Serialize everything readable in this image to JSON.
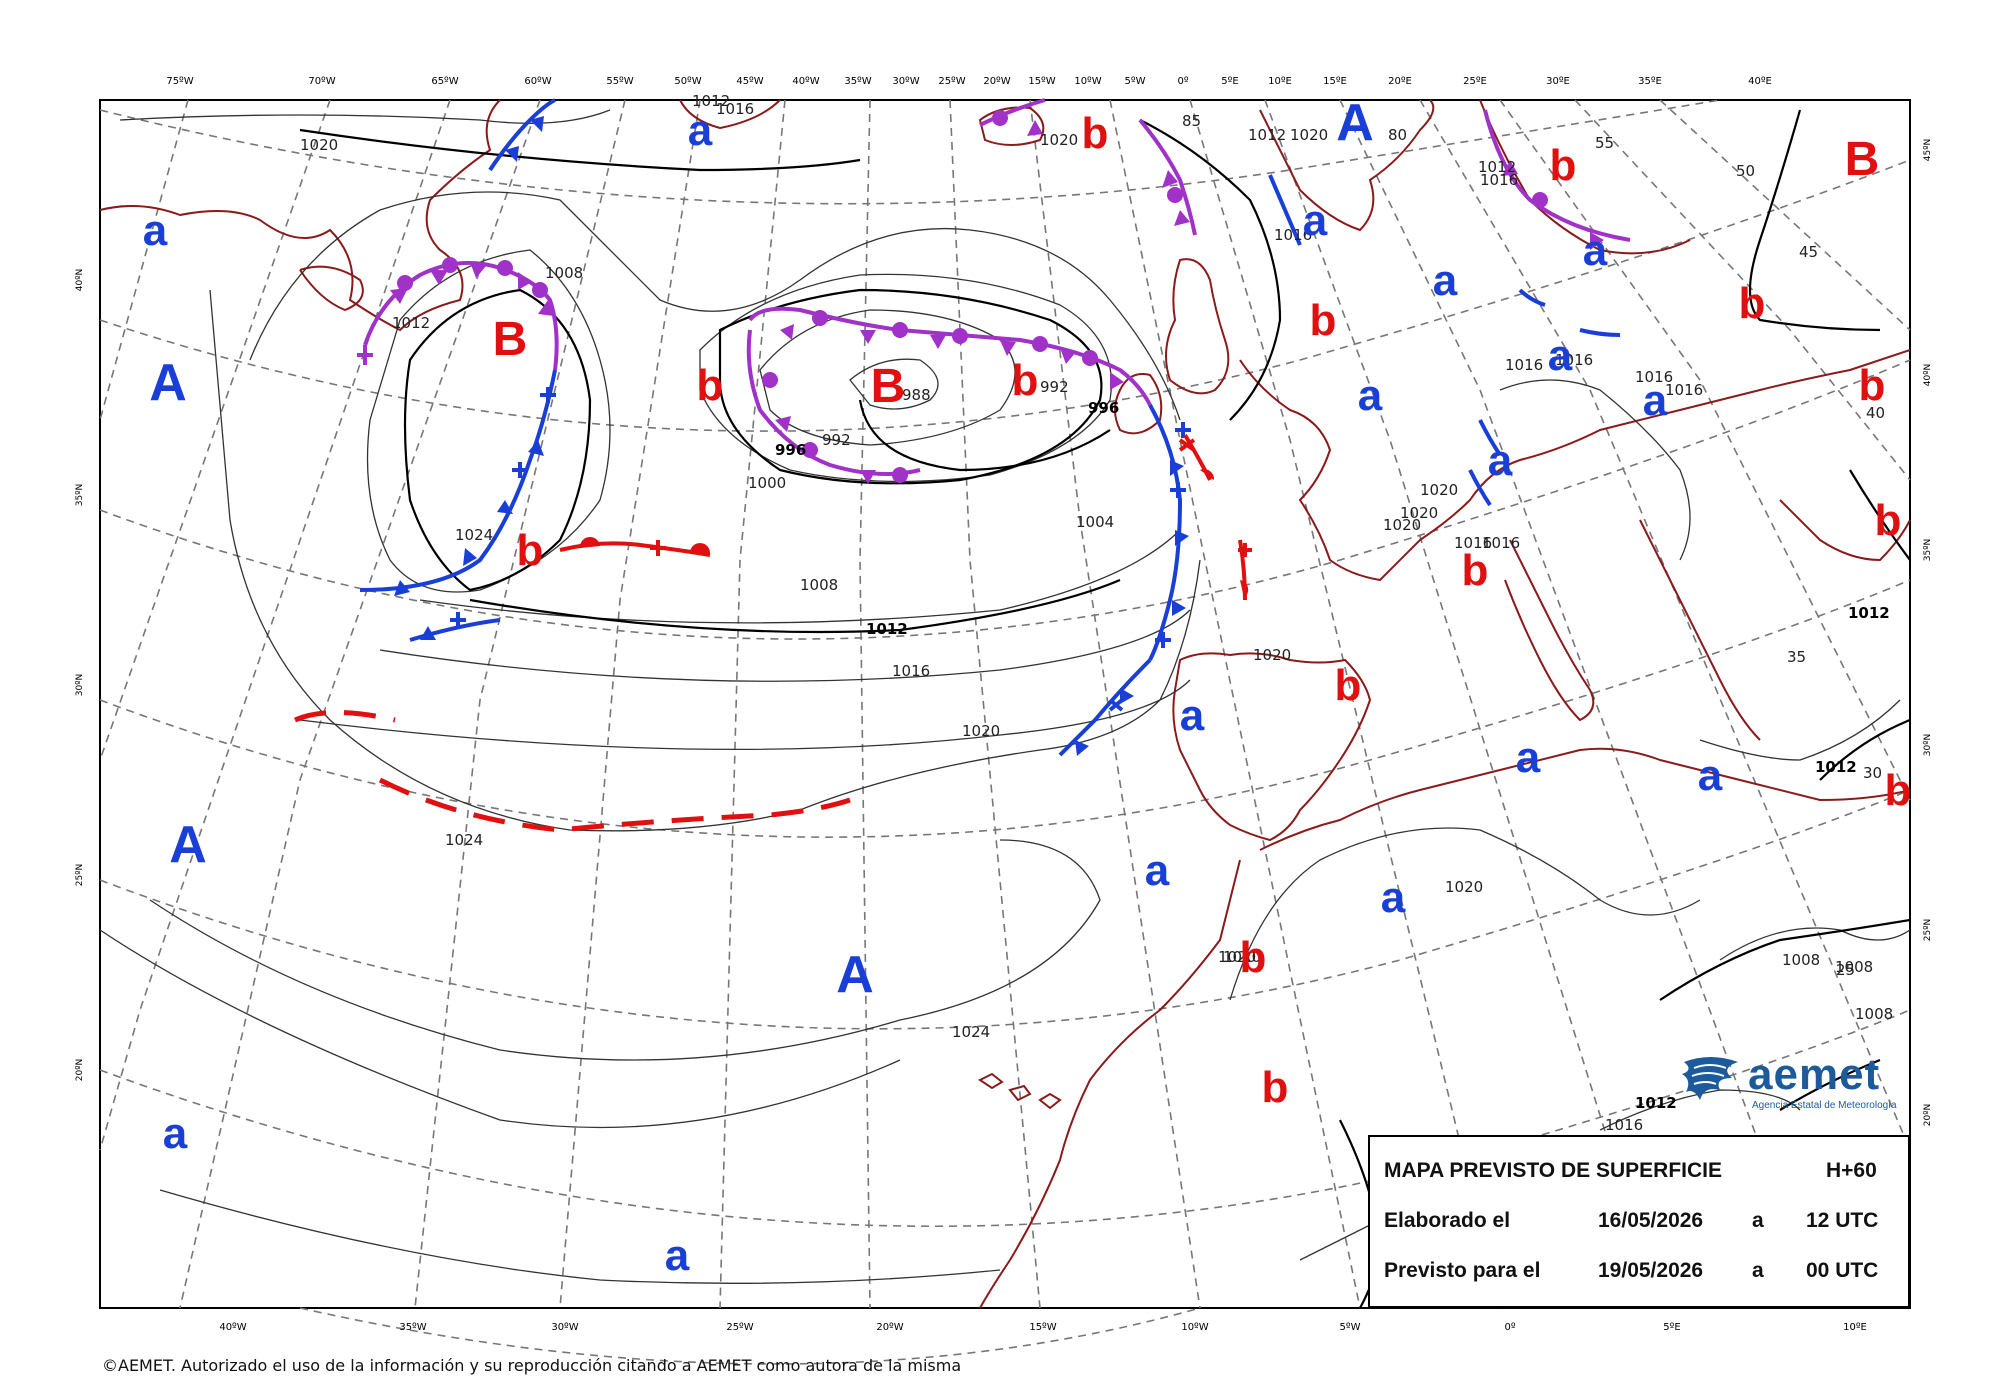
{
  "colors": {
    "high": "#1a3fd6",
    "low": "#e01010",
    "occluded": "#a032c8",
    "cold": "#1a3fd6",
    "warm": "#e01010",
    "coast": "#8b1a1a",
    "grid": "#777777",
    "isobar": "#333333"
  },
  "top_lon_labels": [
    "75ºW",
    "70ºW",
    "65ºW",
    "60ºW",
    "55ºW",
    "50ºW",
    "45ºW",
    "40ºW",
    "35ºW",
    "30ºW",
    "25ºW",
    "20ºW",
    "15ºW",
    "10ºW",
    "5ºW",
    "0º",
    "5ºE",
    "10ºE",
    "15ºE",
    "20ºE",
    "25ºE",
    "30ºE",
    "35ºE",
    "40ºE"
  ],
  "bottom_lon_labels": [
    "40ºW",
    "35ºW",
    "30ºW",
    "25ºW",
    "20ºW",
    "15ºW",
    "10ºW",
    "5ºW",
    "0º",
    "5ºE",
    "10ºE"
  ],
  "left_lat_labels": [
    "40ºN",
    "35ºN",
    "30ºN",
    "25ºN",
    "20ºN"
  ],
  "right_lat_labels": [
    "45ºN",
    "40ºN",
    "35ºN",
    "30ºN",
    "25ºN",
    "20ºN"
  ],
  "isobar_labels": [
    {
      "text": "1020",
      "bold": false
    },
    {
      "text": "1016",
      "bold": false
    },
    {
      "text": "1012",
      "bold": false
    },
    {
      "text": "1008",
      "bold": false
    },
    {
      "text": "1012",
      "bold": false
    },
    {
      "text": "1008",
      "bold": false
    },
    {
      "text": "1004",
      "bold": false
    },
    {
      "text": "1000",
      "bold": false
    },
    {
      "text": "996",
      "bold": true
    },
    {
      "text": "992",
      "bold": false
    },
    {
      "text": "988",
      "bold": false
    },
    {
      "text": "992",
      "bold": false
    },
    {
      "text": "996",
      "bold": true
    },
    {
      "text": "1024",
      "bold": false
    },
    {
      "text": "1012",
      "bold": true
    },
    {
      "text": "1016",
      "bold": false
    },
    {
      "text": "1020",
      "bold": false
    },
    {
      "text": "1024",
      "bold": false
    },
    {
      "text": "1024",
      "bold": false
    },
    {
      "text": "1020",
      "bold": false
    },
    {
      "text": "1020",
      "bold": false
    },
    {
      "text": "1016",
      "bold": false
    },
    {
      "text": "1012",
      "bold": false
    },
    {
      "text": "1020",
      "bold": false
    },
    {
      "text": "1016",
      "bold": false
    },
    {
      "text": "1016",
      "bold": false
    },
    {
      "text": "1016",
      "bold": false
    },
    {
      "text": "1020",
      "bold": false
    },
    {
      "text": "1020",
      "bold": false
    },
    {
      "text": "1020",
      "bold": false
    },
    {
      "text": "1016",
      "bold": false
    },
    {
      "text": "1016",
      "bold": false
    },
    {
      "text": "1016",
      "bold": false
    },
    {
      "text": "1016",
      "bold": false
    },
    {
      "text": "1020",
      "bold": false
    },
    {
      "text": "1020",
      "bold": false
    },
    {
      "text": "1012",
      "bold": true
    },
    {
      "text": "1012",
      "bold": true
    },
    {
      "text": "1008",
      "bold": false
    },
    {
      "text": "1008",
      "bold": false
    },
    {
      "text": "1008",
      "bold": false
    },
    {
      "text": "1012",
      "bold": true
    },
    {
      "text": "1016",
      "bold": false
    },
    {
      "text": "85",
      "bold": false
    },
    {
      "text": "80",
      "bold": false
    },
    {
      "text": "55",
      "bold": false
    },
    {
      "text": "50",
      "bold": false
    },
    {
      "text": "45",
      "bold": false
    },
    {
      "text": "40",
      "bold": false
    },
    {
      "text": "35",
      "bold": false
    },
    {
      "text": "30",
      "bold": false
    },
    {
      "text": "25",
      "bold": false
    },
    {
      "text": "1012",
      "bold": false
    },
    {
      "text": "1020",
      "bold": false
    }
  ],
  "pressure_systems": [
    {
      "label": "A",
      "kind": "high"
    },
    {
      "label": "A",
      "kind": "high"
    },
    {
      "label": "A",
      "kind": "high"
    },
    {
      "label": "A",
      "kind": "high"
    },
    {
      "label": "a",
      "kind": "high"
    },
    {
      "label": "a",
      "kind": "high"
    },
    {
      "label": "a",
      "kind": "high"
    },
    {
      "label": "a",
      "kind": "high"
    },
    {
      "label": "a",
      "kind": "high"
    },
    {
      "label": "a",
      "kind": "high"
    },
    {
      "label": "a",
      "kind": "high"
    },
    {
      "label": "a",
      "kind": "high"
    },
    {
      "label": "a",
      "kind": "high"
    },
    {
      "label": "a",
      "kind": "high"
    },
    {
      "label": "a",
      "kind": "high"
    },
    {
      "label": "a",
      "kind": "high"
    },
    {
      "label": "a",
      "kind": "high"
    },
    {
      "label": "a",
      "kind": "high"
    },
    {
      "label": "a",
      "kind": "high"
    },
    {
      "label": "a",
      "kind": "high"
    },
    {
      "label": "B",
      "kind": "low"
    },
    {
      "label": "B",
      "kind": "low"
    },
    {
      "label": "B",
      "kind": "low"
    },
    {
      "label": "b",
      "kind": "low"
    },
    {
      "label": "b",
      "kind": "low"
    },
    {
      "label": "b",
      "kind": "low"
    },
    {
      "label": "b",
      "kind": "low"
    },
    {
      "label": "b",
      "kind": "low"
    },
    {
      "label": "b",
      "kind": "low"
    },
    {
      "label": "b",
      "kind": "low"
    },
    {
      "label": "b",
      "kind": "low"
    },
    {
      "label": "b",
      "kind": "low"
    },
    {
      "label": "b",
      "kind": "low"
    },
    {
      "label": "b",
      "kind": "low"
    },
    {
      "label": "b",
      "kind": "low"
    },
    {
      "label": "b",
      "kind": "low"
    },
    {
      "label": "b",
      "kind": "low"
    },
    {
      "label": "b",
      "kind": "low"
    }
  ],
  "info": {
    "title": "MAPA PREVISTO DE SUPERFICIE",
    "lead": "H+60",
    "elaborated_label": "Elaborado el",
    "elaborated_date": "16/05/2026",
    "at": "a",
    "elaborated_time": "12 UTC",
    "forecast_label": "Previsto para el",
    "forecast_date": "19/05/2026",
    "forecast_time": "00 UTC"
  },
  "logo": {
    "name": "aemet",
    "subtitle": "Agencia Estatal de Meteorología"
  },
  "copyright": "©AEMET. Autorizado el uso de la información y su reproducción citando a AEMET como autora de la misma"
}
